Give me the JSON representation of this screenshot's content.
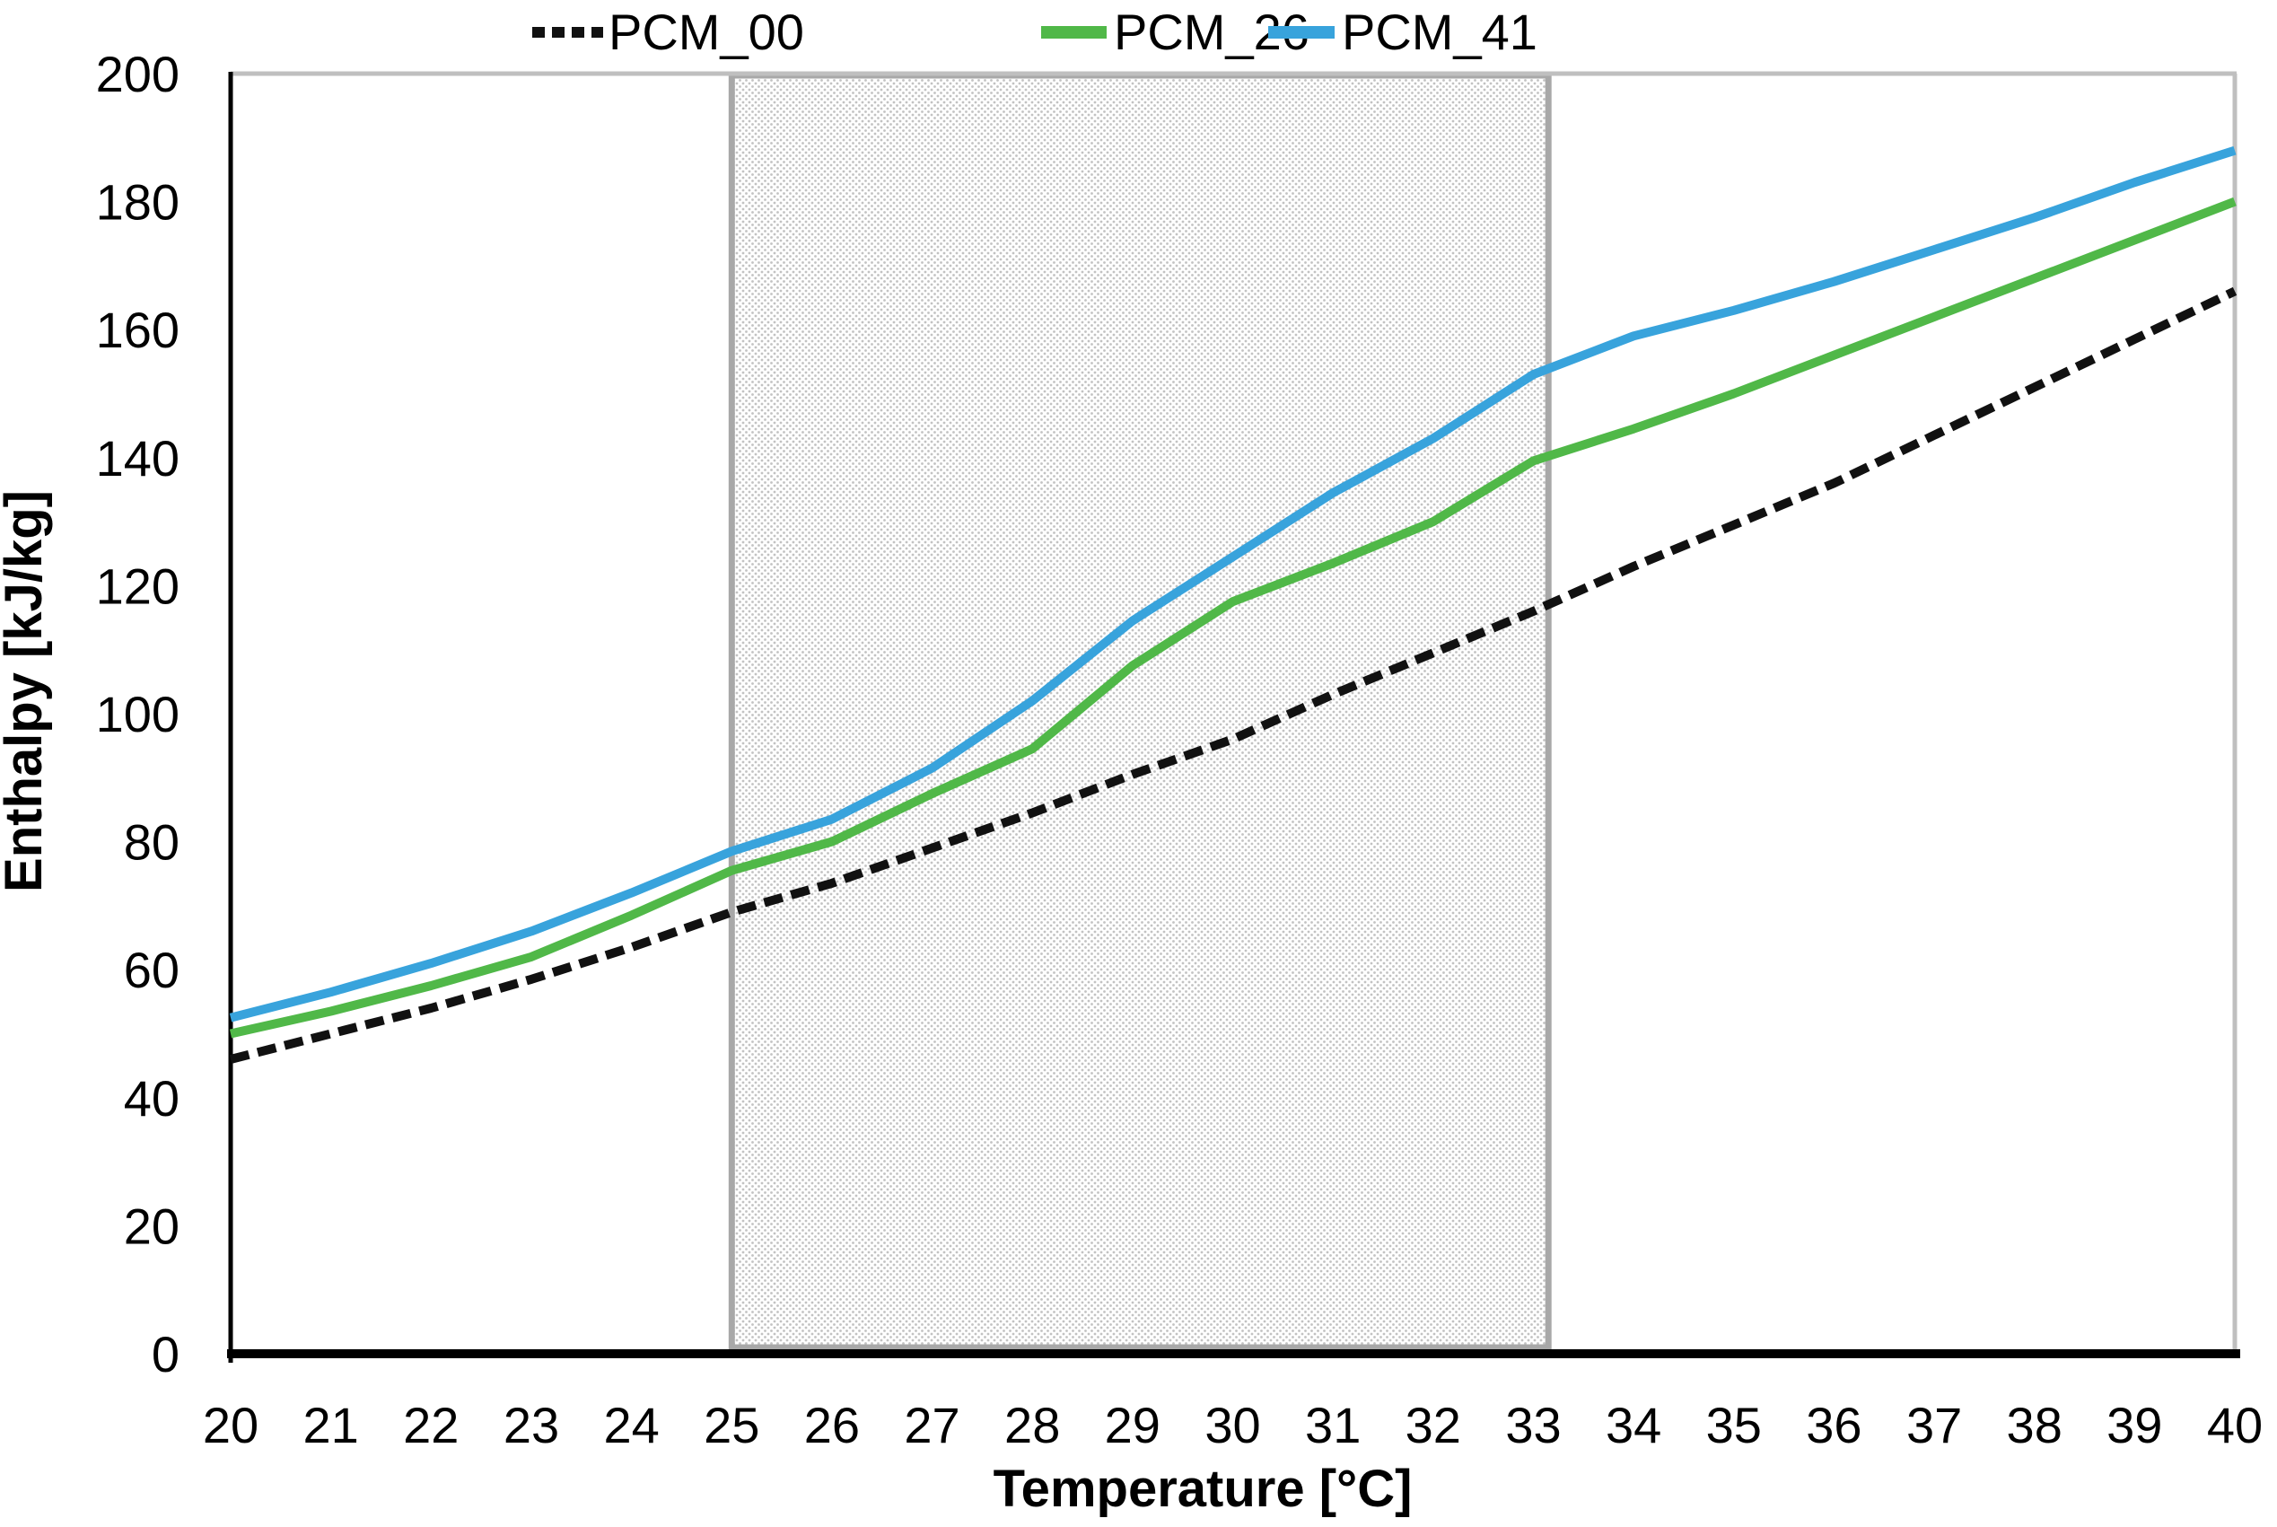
{
  "chart_data": {
    "type": "line",
    "title": "",
    "xlabel": "Temperature [°C]",
    "ylabel": "Enthalpy [kJ/kg]",
    "xlim": [
      20,
      40
    ],
    "ylim": [
      0,
      200
    ],
    "grid": false,
    "legend_position": "top-center",
    "x_ticks": [
      20,
      21,
      22,
      23,
      24,
      25,
      26,
      27,
      28,
      29,
      30,
      31,
      32,
      33,
      34,
      35,
      36,
      37,
      38,
      39,
      40
    ],
    "y_ticks": [
      0,
      20,
      40,
      60,
      80,
      100,
      120,
      140,
      160,
      180,
      200
    ],
    "x": [
      20,
      21,
      22,
      23,
      24,
      25,
      26,
      27,
      28,
      29,
      30,
      31,
      32,
      33,
      34,
      35,
      36,
      37,
      38,
      39,
      40
    ],
    "series": [
      {
        "name": "PCM_00",
        "style": "dashed",
        "color": "#111111",
        "values": [
          46,
          50,
          54,
          58.5,
          63.5,
          69,
          73.5,
          79,
          84.5,
          90.5,
          96,
          103,
          109.5,
          116,
          123,
          129.5,
          136,
          143.5,
          151,
          158.5,
          166
        ]
      },
      {
        "name": "PCM_26",
        "style": "solid",
        "color": "#50B848",
        "values": [
          50,
          53.5,
          57.5,
          62,
          68.5,
          75.5,
          80,
          87.5,
          94.5,
          107.5,
          117.5,
          123.5,
          130,
          139.5,
          144.5,
          150,
          156,
          162,
          168,
          174,
          180
        ]
      },
      {
        "name": "PCM_41",
        "style": "solid",
        "color": "#38A3DC",
        "values": [
          52.5,
          56.5,
          61,
          66,
          72,
          78.5,
          83.5,
          91.5,
          102,
          114.5,
          124.5,
          134.5,
          143,
          153,
          159,
          163,
          167.5,
          172.5,
          177.5,
          183,
          188
        ]
      }
    ],
    "shaded_region": {
      "x_start": 25,
      "x_end": 33.15,
      "fill": "dotted-pattern",
      "dot_color": "#c2c2c2",
      "border_color": "#A8A8A8"
    },
    "axis_colors": {
      "left_bottom_axis": "#000000",
      "top_right_border": "#BFBFBF"
    }
  }
}
